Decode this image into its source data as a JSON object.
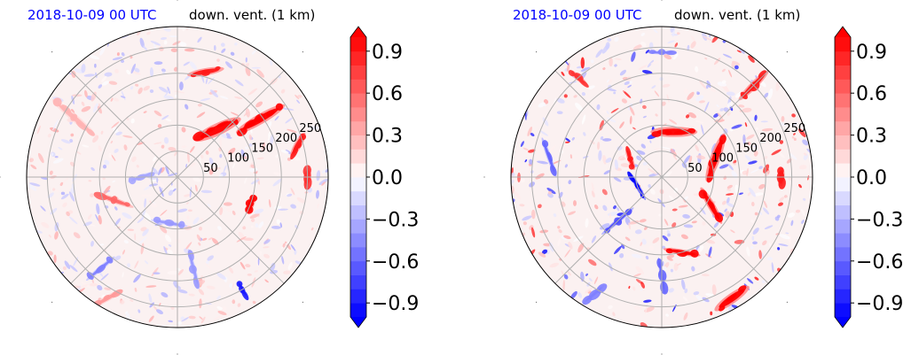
{
  "panels": [
    {
      "id": "left",
      "title_date": "2018-10-09 00 UTC",
      "title_var": "down. vent. (1 km)"
    },
    {
      "id": "right",
      "title_date": "2018-10-09 00 UTC",
      "title_var": "down. vent. (1 km)"
    }
  ],
  "colors": {
    "title_date": "#0000ff",
    "positive": "#ff0000",
    "negative": "#0000ff",
    "neutral": "#ffffff",
    "grid": "#b0b0b0"
  },
  "chart_data": [
    {
      "type": "heatmap",
      "projection": "polar",
      "title": "2018-10-09 00 UTC   down. vent. (1 km)",
      "radial_ticks": [
        "50",
        "100",
        "150",
        "200",
        "250"
      ],
      "radial_max": 290,
      "grid": true,
      "colorbar": {
        "ticks": [
          "0.9",
          "0.6",
          "0.3",
          "0.0",
          "−0.3",
          "−0.6",
          "−0.9"
        ],
        "tick_values": [
          0.9,
          0.6,
          0.3,
          0.0,
          -0.3,
          -0.6,
          -0.9
        ],
        "range": [
          -1.0,
          1.0
        ],
        "extend": "both",
        "colormap": "bwr"
      },
      "features": [
        {
          "theta_deg": 50,
          "r": 120,
          "value": 1.0,
          "width": 110,
          "height": 26,
          "angle": -25
        },
        {
          "theta_deg": 35,
          "r": 195,
          "value": 1.0,
          "width": 120,
          "height": 22,
          "angle": -30
        },
        {
          "theta_deg": 75,
          "r": 210,
          "value": 0.9,
          "width": 80,
          "height": 16,
          "angle": -10
        },
        {
          "theta_deg": 15,
          "r": 240,
          "value": 0.9,
          "width": 60,
          "height": 16,
          "angle": -60
        },
        {
          "theta_deg": 0,
          "r": 250,
          "value": 0.8,
          "width": 40,
          "height": 14,
          "angle": -80
        },
        {
          "theta_deg": -20,
          "r": 150,
          "value": 1.0,
          "width": 40,
          "height": 16,
          "angle": -70
        },
        {
          "theta_deg": 200,
          "r": 130,
          "value": 0.6,
          "width": 90,
          "height": 12,
          "angle": 20
        },
        {
          "theta_deg": 150,
          "r": 230,
          "value": 0.3,
          "width": 120,
          "height": 16,
          "angle": 40
        },
        {
          "theta_deg": 230,
          "r": 230,
          "value": -0.5,
          "width": 80,
          "height": 10,
          "angle": -40
        },
        {
          "theta_deg": 280,
          "r": 180,
          "value": -0.4,
          "width": 90,
          "height": 10,
          "angle": 75
        },
        {
          "theta_deg": 260,
          "r": 90,
          "value": -0.4,
          "width": 80,
          "height": 10,
          "angle": 10
        },
        {
          "theta_deg": 180,
          "r": 70,
          "value": -0.35,
          "width": 60,
          "height": 10,
          "angle": -20
        },
        {
          "theta_deg": 300,
          "r": 250,
          "value": -0.9,
          "width": 40,
          "height": 6,
          "angle": 60
        },
        {
          "theta_deg": 240,
          "r": 270,
          "value": 0.4,
          "width": 70,
          "height": 12,
          "angle": -30
        }
      ]
    },
    {
      "type": "heatmap",
      "projection": "polar",
      "title": "2018-10-09 00 UTC   down. vent. (1 km)",
      "radial_ticks": [
        "50",
        "100",
        "150",
        "200",
        "250"
      ],
      "radial_max": 290,
      "grid": true,
      "colorbar": {
        "ticks": [
          "0.9",
          "0.6",
          "0.3",
          "0.0",
          "−0.3",
          "−0.6",
          "−0.9"
        ],
        "tick_values": [
          0.9,
          0.6,
          0.3,
          0.0,
          -0.3,
          -0.6,
          -0.9
        ],
        "range": [
          -1.0,
          1.0
        ],
        "extend": "both",
        "colormap": "bwr"
      },
      "features": [
        {
          "theta_deg": 75,
          "r": 90,
          "value": 1.0,
          "width": 100,
          "height": 22,
          "angle": 0
        },
        {
          "theta_deg": 20,
          "r": 110,
          "value": 1.0,
          "width": 110,
          "height": 22,
          "angle": -70
        },
        {
          "theta_deg": -30,
          "r": 110,
          "value": 1.0,
          "width": 90,
          "height": 16,
          "angle": -120
        },
        {
          "theta_deg": -75,
          "r": 150,
          "value": 1.0,
          "width": 80,
          "height": 12,
          "angle": 10
        },
        {
          "theta_deg": 150,
          "r": 70,
          "value": 0.9,
          "width": 50,
          "height": 12,
          "angle": 70
        },
        {
          "theta_deg": 200,
          "r": 50,
          "value": -1.0,
          "width": 70,
          "height": 10,
          "angle": 60
        },
        {
          "theta_deg": 225,
          "r": 120,
          "value": -0.7,
          "width": 90,
          "height": 10,
          "angle": -40
        },
        {
          "theta_deg": 170,
          "r": 220,
          "value": -0.6,
          "width": 90,
          "height": 10,
          "angle": 70
        },
        {
          "theta_deg": 300,
          "r": 270,
          "value": 1.0,
          "width": 90,
          "height": 22,
          "angle": -35
        },
        {
          "theta_deg": 45,
          "r": 250,
          "value": 0.9,
          "width": 90,
          "height": 16,
          "angle": -45
        },
        {
          "theta_deg": 90,
          "r": 240,
          "value": -0.5,
          "width": 60,
          "height": 8,
          "angle": 0
        },
        {
          "theta_deg": 130,
          "r": 250,
          "value": 0.8,
          "width": 50,
          "height": 12,
          "angle": 40
        },
        {
          "theta_deg": 270,
          "r": 190,
          "value": -0.6,
          "width": 80,
          "height": 8,
          "angle": 80
        },
        {
          "theta_deg": 0,
          "r": 230,
          "value": 0.9,
          "width": 40,
          "height": 14,
          "angle": -85
        },
        {
          "theta_deg": 240,
          "r": 260,
          "value": -0.5,
          "width": 60,
          "height": 8,
          "angle": -40
        }
      ]
    }
  ]
}
